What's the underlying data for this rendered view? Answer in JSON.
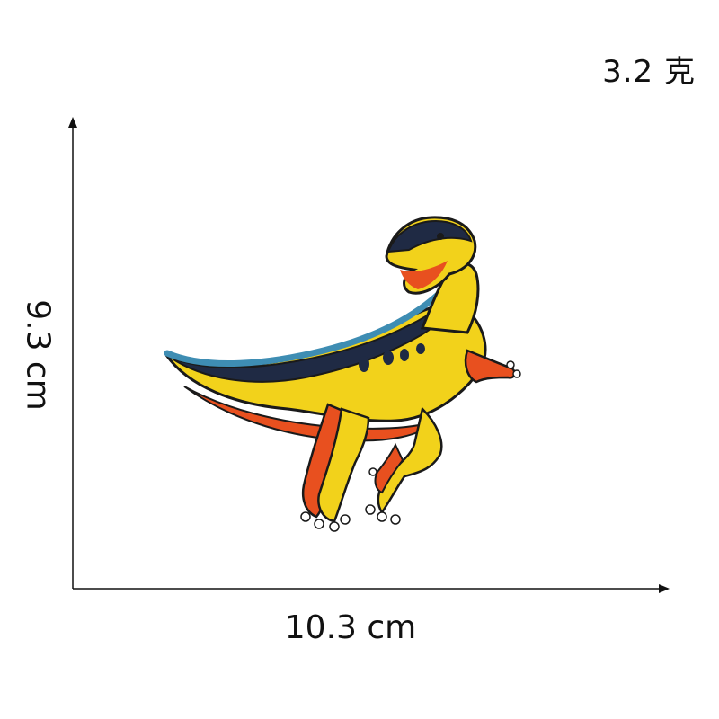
{
  "weight": "3.2 克",
  "dimensions": {
    "width": "10.3 cm",
    "height": "9.3 cm"
  },
  "product": {
    "icon": "dinosaur-patch-icon",
    "colors": {
      "yellow": "#f2d21b",
      "orange": "#e8501f",
      "navy": "#1f2a44",
      "teal": "#3e8db3",
      "outline": "#1a1a1a"
    }
  }
}
